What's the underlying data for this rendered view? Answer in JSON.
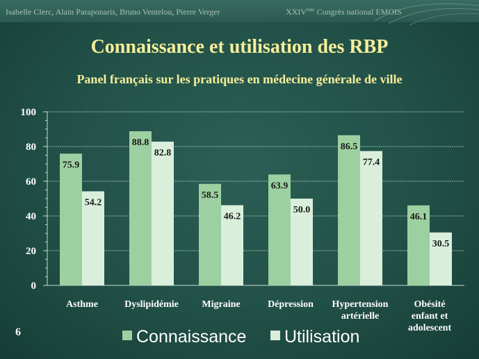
{
  "header": {
    "authors": "Isabelle Clerc, Alain Paraponaris, Bruno Ventelou, Pierre Verger",
    "congress_prefix": "XXIV",
    "congress_sup": "ème",
    "congress_suffix": " Congrès national EMOIS"
  },
  "slide_number": "6",
  "colors": {
    "connaissance": "#9dd0a0",
    "utilisation": "#d9efdc",
    "title": "#f6ef9a",
    "background": "#215047"
  },
  "chart_data": {
    "type": "bar",
    "title": "Connaissance et utilisation des RBP",
    "subtitle": "Panel français sur les pratiques en médecine générale de ville",
    "categories": [
      [
        "Asthme"
      ],
      [
        "Dyslipidémie"
      ],
      [
        "Migraine"
      ],
      [
        "Dépression"
      ],
      [
        "Hypertension",
        "artérielle"
      ],
      [
        "Obésité",
        "enfant et",
        "adolescent"
      ]
    ],
    "series": [
      {
        "name": "Connaissance",
        "values": [
          75.9,
          88.8,
          58.5,
          63.9,
          86.5,
          46.1
        ]
      },
      {
        "name": "Utilisation",
        "values": [
          54.2,
          82.8,
          46.2,
          50.0,
          77.4,
          30.5
        ]
      }
    ],
    "value_labels": [
      [
        "75.9",
        "88.8",
        "58.5",
        "63.9",
        "86.5",
        "46.1"
      ],
      [
        "54.2",
        "82.8",
        "46.2",
        "50.0",
        "77.4",
        "30.5"
      ]
    ],
    "ylim": [
      0,
      100
    ],
    "yticks": [
      0,
      20,
      40,
      60,
      80,
      100
    ],
    "grid": true,
    "legend": "bottom"
  }
}
